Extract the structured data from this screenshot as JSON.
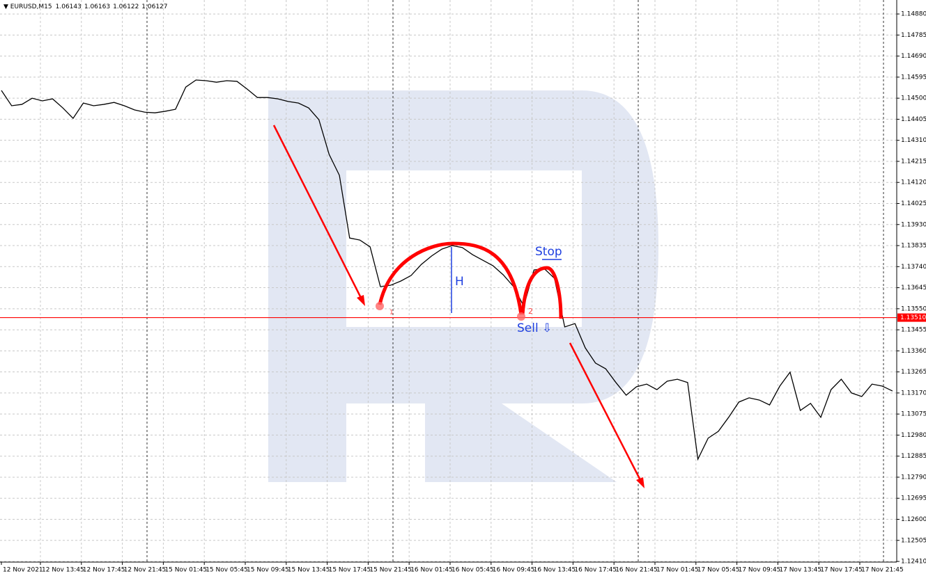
{
  "chart_data": {
    "type": "line",
    "symbol": "EURUSD,M15",
    "ohlc": [
      1.06143,
      1.06163,
      1.06122,
      1.06127
    ],
    "x_labels": [
      "12 Nov 2021",
      "12 Nov 13:45",
      "12 Nov 17:45",
      "12 Nov 21:45",
      "15 Nov 01:45",
      "15 Nov 05:45",
      "15 Nov 09:45",
      "15 Nov 13:45",
      "15 Nov 17:45",
      "15 Nov 21:45",
      "16 Nov 01:45",
      "16 Nov 05:45",
      "16 Nov 09:45",
      "16 Nov 13:45",
      "16 Nov 17:45",
      "16 Nov 21:45",
      "17 Nov 01:45",
      "17 Nov 05:45",
      "17 Nov 09:45",
      "17 Nov 13:45",
      "17 Nov 17:45",
      "17 Nov 21:45"
    ],
    "series": [
      {
        "name": "EURUSD",
        "color": "#000000",
        "values": [
          1.14535,
          1.14466,
          1.14472,
          1.145,
          1.14488,
          1.14497,
          1.14456,
          1.14409,
          1.14478,
          1.14466,
          1.14472,
          1.14481,
          1.14466,
          1.14447,
          1.14437,
          1.14434,
          1.14441,
          1.1445,
          1.1455,
          1.14582,
          1.14579,
          1.14572,
          1.14579,
          1.14576,
          1.14541,
          1.14503,
          1.14503,
          1.14497,
          1.14485,
          1.14478,
          1.14456,
          1.14403,
          1.14246,
          1.14152,
          1.13869,
          1.1386,
          1.13829,
          1.1365,
          1.13656,
          1.13675,
          1.137,
          1.1375,
          1.13788,
          1.13819,
          1.13835,
          1.13826,
          1.13794,
          1.13769,
          1.13744,
          1.13703,
          1.1365,
          1.13562,
          1.13725,
          1.13731,
          1.13687,
          1.13468,
          1.13483,
          1.13374,
          1.13305,
          1.13279,
          1.13217,
          1.1316,
          1.13198,
          1.1321,
          1.13185,
          1.13223,
          1.13232,
          1.13217,
          1.12871,
          1.12966,
          1.12997,
          1.1306,
          1.13129,
          1.13148,
          1.13138,
          1.13116,
          1.13201,
          1.13264,
          1.13091,
          1.13123,
          1.1306,
          1.13185,
          1.13232,
          1.1317,
          1.13154,
          1.1321,
          1.13201,
          1.13179
        ]
      }
    ],
    "ylim": [
      1.12407,
      1.14943
    ],
    "yticks": [
      {
        "value": 1.1488,
        "label": "1.14880"
      },
      1.14785,
      {
        "value": 1.1469,
        "label": "1.14690"
      },
      1.14595,
      {
        "value": 1.145,
        "label": "1.14500"
      },
      1.14405,
      {
        "value": 1.1431,
        "label": "1.14310"
      },
      1.14215,
      {
        "value": 1.1412,
        "label": "1.14120"
      },
      1.14025,
      {
        "value": 1.1393,
        "label": "1.13930"
      },
      1.13835,
      {
        "value": 1.1374,
        "label": "1.13740"
      },
      1.13645,
      {
        "value": 1.1355,
        "label": "1.13550"
      },
      1.13455,
      {
        "value": 1.1336,
        "label": "1.13360"
      },
      1.13265,
      {
        "value": 1.1317,
        "label": "1.13170"
      },
      1.13075,
      {
        "value": 1.1298,
        "label": "1.12980"
      },
      1.12885,
      {
        "value": 1.1279,
        "label": "1.12790"
      },
      1.12695,
      {
        "value": 1.126,
        "label": "1.12600"
      },
      1.12505,
      {
        "value": 1.1241,
        "label": "1.12410"
      }
    ],
    "grid": true,
    "price_line": {
      "value": 1.1351,
      "label": "1.13510",
      "color": "#ff0000"
    },
    "annotations": [
      "Stop",
      "H",
      "Sell ⇩",
      "1",
      "2"
    ]
  }
}
